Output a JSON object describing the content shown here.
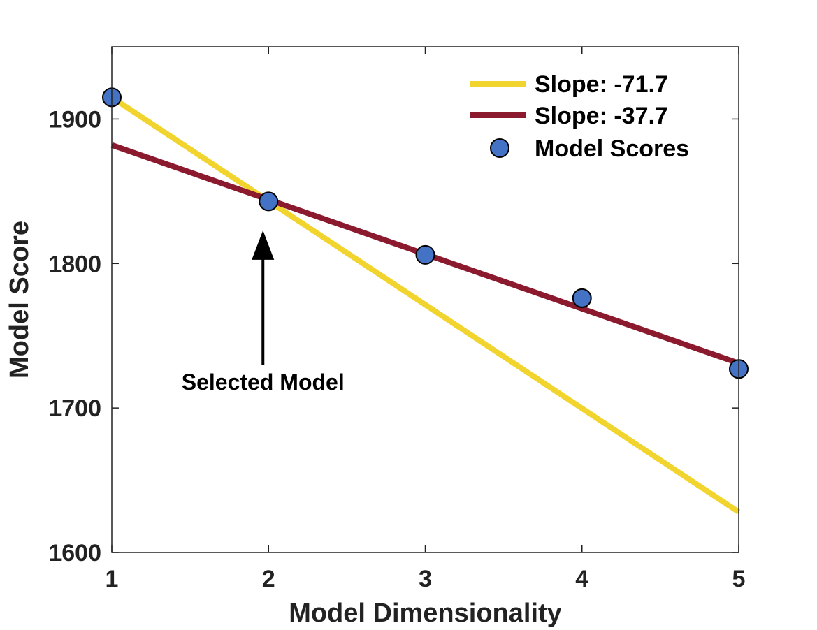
{
  "chart_data": {
    "type": "line",
    "xlabel": "Model Dimensionality",
    "ylabel": "Model Score",
    "xlim": [
      1,
      5
    ],
    "ylim": [
      1600,
      1950
    ],
    "xticks": [
      1,
      2,
      3,
      4,
      5
    ],
    "yticks": [
      1600,
      1700,
      1800,
      1900
    ],
    "grid": false,
    "legend_position": "top-right",
    "series": [
      {
        "name": "Slope: -71.7",
        "kind": "line",
        "color": "#F2D42F",
        "x": [
          1,
          5
        ],
        "y": [
          1915,
          1628
        ]
      },
      {
        "name": "Slope: -37.7",
        "kind": "line",
        "color": "#8C1A2E",
        "x": [
          1,
          5
        ],
        "y": [
          1882,
          1731
        ]
      },
      {
        "name": "Model Scores",
        "kind": "scatter",
        "color": "#4472C4",
        "x": [
          1,
          2,
          3,
          4,
          5
        ],
        "y": [
          1915,
          1843,
          1806,
          1776,
          1727
        ]
      }
    ],
    "annotations": [
      {
        "text": "Selected Model",
        "arrow_to": {
          "x": 2,
          "y": 1820
        },
        "arrow_from": {
          "x": 2,
          "y": 1730
        }
      }
    ]
  }
}
